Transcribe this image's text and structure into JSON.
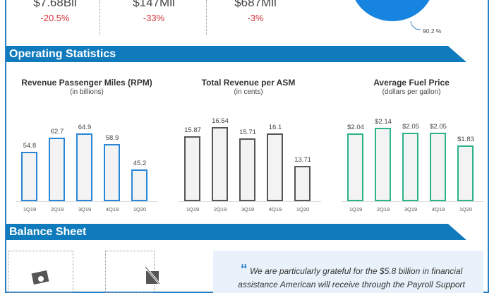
{
  "kpis": [
    {
      "value": "$7.68Bil",
      "change": "-20.5%"
    },
    {
      "value": "$147Mil",
      "change": "-33%"
    },
    {
      "value": "$687Mil",
      "change": "-3%"
    }
  ],
  "pie": {
    "label": "90.2 %",
    "color": "#1785e0"
  },
  "sections": {
    "operating": "Operating Statistics",
    "balance": "Balance Sheet"
  },
  "chart_data": [
    {
      "type": "bar",
      "title": "Revenue Passenger Miles (RPM)",
      "subtitle": "(in billions)",
      "categories": [
        "1Q19",
        "2Q19",
        "3Q19",
        "4Q19",
        "1Q20"
      ],
      "values": [
        54.8,
        62.7,
        64.9,
        58.9,
        45.2
      ],
      "labels": [
        "54.8",
        "62.7",
        "64.9",
        "58.9",
        "45.2"
      ],
      "color": "#2a86d6"
    },
    {
      "type": "bar",
      "title": "Total Revenue per ASM",
      "subtitle": "(in cents)",
      "categories": [
        "1Q19",
        "2Q19",
        "3Q19",
        "4Q19",
        "1Q20"
      ],
      "values": [
        15.87,
        16.54,
        15.71,
        16.1,
        13.71
      ],
      "labels": [
        "15.87",
        "16.54",
        "15.71",
        "16.1",
        "13.71"
      ],
      "color": "#555555"
    },
    {
      "type": "bar",
      "title": "Average Fuel Price",
      "subtitle": "(dollars per gallon)",
      "categories": [
        "1Q19",
        "2Q19",
        "3Q19",
        "4Q19",
        "1Q20"
      ],
      "values": [
        2.04,
        2.14,
        2.05,
        2.05,
        1.83
      ],
      "labels": [
        "$2.04",
        "$2.14",
        "$2.05",
        "$2.05",
        "$1.83"
      ],
      "color": "#2bb38c"
    }
  ],
  "quote": {
    "mark": "“",
    "text": "We are particularly grateful for the $5.8 billion in financial assistance American will receive through the Payroll Support"
  }
}
